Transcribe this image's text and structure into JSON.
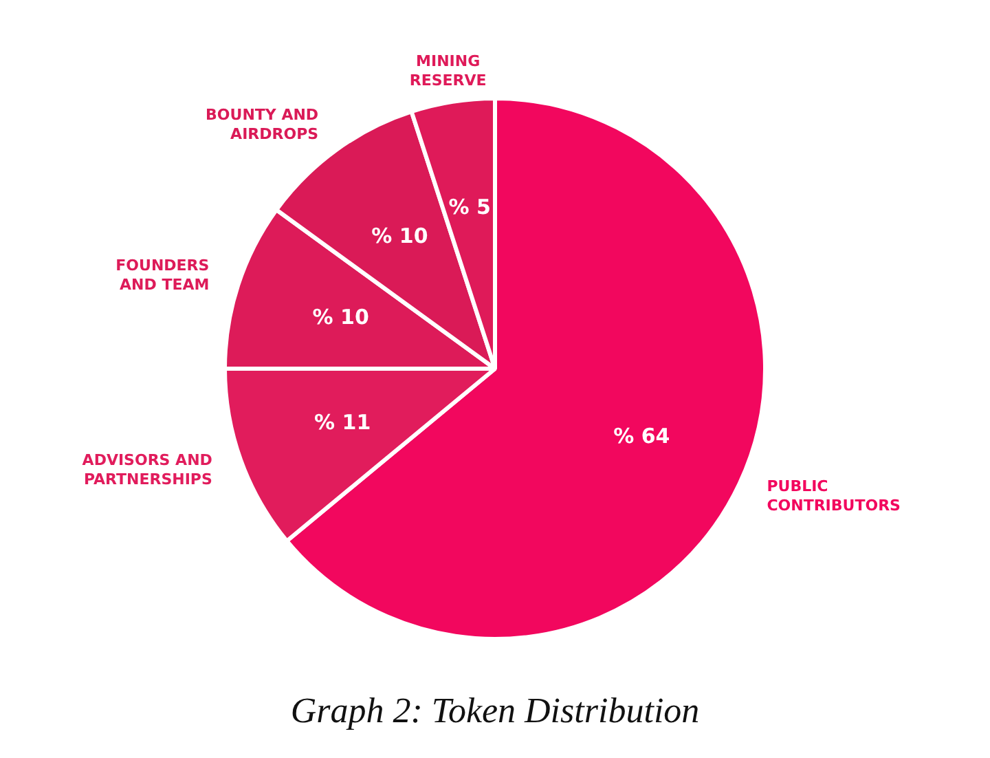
{
  "chart_data": {
    "type": "pie",
    "title": "Graph 2: Token Distribution",
    "categories": [
      "PUBLIC\nCONTRIBUTORS",
      "ADVISORS AND\nPARTNERSHIPS",
      "FOUNDERS\nAND TEAM",
      "BOUNTY AND\nAIRDROPS",
      "MINING\nRESERVE"
    ],
    "values": [
      64,
      11,
      10,
      10,
      5
    ],
    "colors": [
      "#f2075e",
      "#e11c5c",
      "#dd1b59",
      "#da1a57",
      "#df1a59"
    ],
    "value_labels": [
      "% 64",
      "% 11",
      "% 10",
      "% 10",
      "% 5"
    ],
    "legend": false
  }
}
